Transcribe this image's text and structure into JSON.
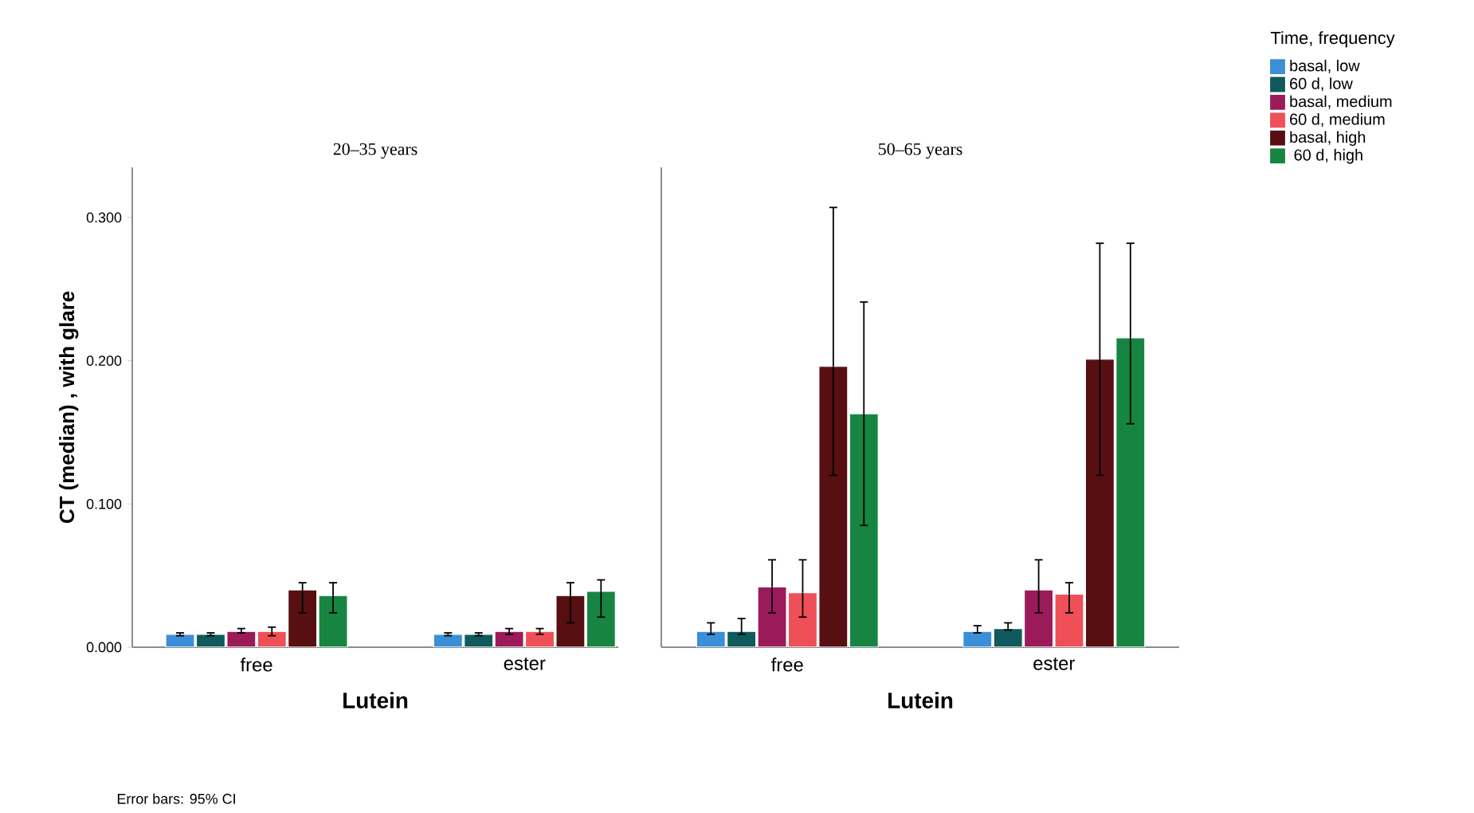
{
  "chart_data": [
    {
      "type": "bar",
      "title": "20–35 years",
      "xlabel": "Lutein",
      "ylabel": "CT (median) , with glare",
      "categories": [
        "free",
        "ester"
      ],
      "ylim": [
        0,
        0.335
      ],
      "yticks": [
        {
          "value": 0,
          "label": "0.000"
        },
        {
          "value": 0.1,
          "label": "0.100"
        },
        {
          "value": 0.2,
          "label": "0.200"
        },
        {
          "value": 0.3,
          "label": "0.300"
        }
      ],
      "series": [
        {
          "color": "#3a8fd6",
          "values": [
            0.009,
            0.009
          ],
          "errors": [
            [
              0.008,
              0.01
            ],
            [
              0.008,
              0.01
            ]
          ]
        },
        {
          "color": "#0f5a5c",
          "values": [
            0.009,
            0.009
          ],
          "errors": [
            [
              0.008,
              0.01
            ],
            [
              0.008,
              0.01
            ]
          ]
        },
        {
          "color": "#9b1b5a",
          "values": [
            0.011,
            0.011
          ],
          "errors": [
            [
              0.01,
              0.013
            ],
            [
              0.009,
              0.013
            ]
          ]
        },
        {
          "color": "#ef5058",
          "values": [
            0.011,
            0.011
          ],
          "errors": [
            [
              0.008,
              0.014
            ],
            [
              0.009,
              0.013
            ]
          ]
        },
        {
          "color": "#570f12",
          "values": [
            0.04,
            0.036
          ],
          "errors": [
            [
              0.024,
              0.045
            ],
            [
              0.017,
              0.045
            ]
          ]
        },
        {
          "color": "#178541",
          "values": [
            0.036,
            0.039
          ],
          "errors": [
            [
              0.024,
              0.045
            ],
            [
              0.021,
              0.047
            ]
          ]
        }
      ],
      "annotations": [
        "Error bars: 95% CI"
      ],
      "legend": false
    },
    {
      "type": "bar",
      "title": "50–65 years",
      "xlabel": "Lutein",
      "categories": [
        "free",
        "ester"
      ],
      "ylim": [
        0,
        0.335
      ],
      "tick_labels": "x",
      "legend_title": "Time, frequency",
      "legend": "top right",
      "series": [
        {
          "name": "basal, low",
          "color": "#3a8fd6",
          "values": [
            0.011,
            0.011
          ],
          "errors": [
            [
              0.009,
              0.017
            ],
            [
              0.01,
              0.015
            ]
          ]
        },
        {
          "name": "60 d, low",
          "color": "#0f5a5c",
          "values": [
            0.011,
            0.013
          ],
          "errors": [
            [
              0.009,
              0.02
            ],
            [
              0.012,
              0.017
            ]
          ]
        },
        {
          "name": "basal, medium",
          "color": "#9b1b5a",
          "values": [
            0.042,
            0.04
          ],
          "errors": [
            [
              0.024,
              0.061
            ],
            [
              0.024,
              0.061
            ]
          ]
        },
        {
          "name": "60 d, medium",
          "color": "#ef5058",
          "values": [
            0.038,
            0.037
          ],
          "errors": [
            [
              0.021,
              0.061
            ],
            [
              0.024,
              0.045
            ]
          ]
        },
        {
          "name": "basal, high",
          "color": "#570f12",
          "values": [
            0.196,
            0.201
          ],
          "errors": [
            [
              0.12,
              0.307
            ],
            [
              0.12,
              0.282
            ]
          ]
        },
        {
          "name": " 60 d, high",
          "color": "#178541",
          "values": [
            0.163,
            0.216
          ],
          "errors": [
            [
              0.085,
              0.241
            ],
            [
              0.156,
              0.282
            ]
          ]
        }
      ]
    }
  ]
}
